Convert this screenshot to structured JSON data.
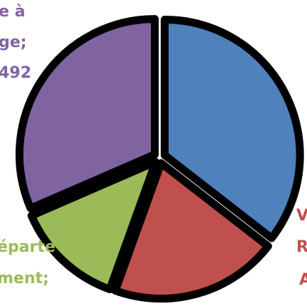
{
  "chart_data": {
    "type": "pie",
    "title": "",
    "slices": [
      {
        "label_lines": [
          "",
          "",
          ""
        ],
        "value": 35.5,
        "color": "#4F81BD"
      },
      {
        "label_lines": [
          "V",
          "R",
          "A"
        ],
        "value": 20.0,
        "color": "#C0504D"
      },
      {
        "label_lines": [
          "éparte",
          "ment;",
          ""
        ],
        "value": 13.0,
        "color": "#9BBB59"
      },
      {
        "label_lines": [
          "e à",
          "ge;",
          "492"
        ],
        "value": 31.5,
        "color": "#8064A2"
      }
    ],
    "start_angle_deg": 0,
    "direction": "clockwise",
    "outline_color": "#000000",
    "legend": "none"
  }
}
